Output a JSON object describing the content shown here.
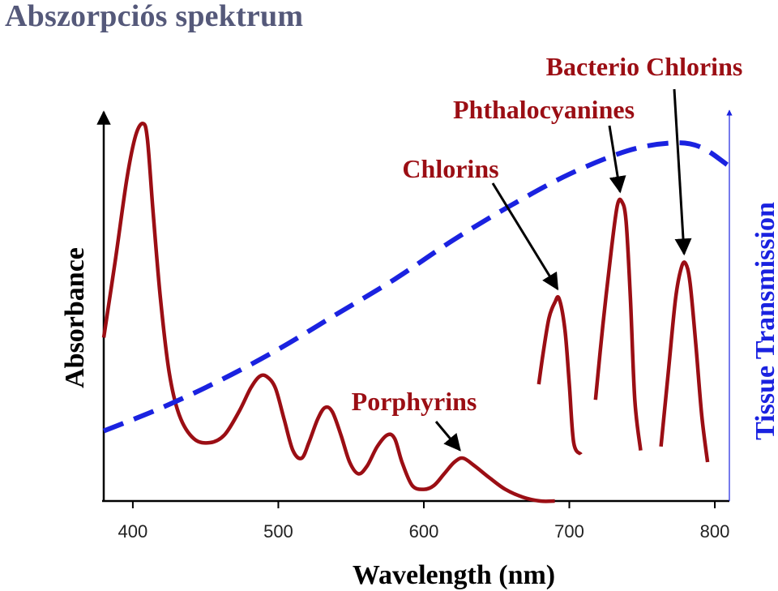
{
  "page": {
    "title": "Abszorpciós spektrum"
  },
  "colors": {
    "title": "#55597a",
    "spectrum": "#9b0e14",
    "transmission": "#1a22e0",
    "axis": "#000000",
    "annotation": "#9b0e14"
  },
  "chart_data": {
    "type": "line",
    "xlabel": "Wavelength (nm)",
    "ylabel": "Absorbance",
    "y2label": "Tissue Transmission",
    "xlim": [
      380,
      810
    ],
    "x_ticks": [
      "400",
      "500",
      "600",
      "700",
      "800"
    ],
    "series": [
      {
        "role": "spectrum",
        "points": [
          [
            380,
            0.42
          ],
          [
            388,
            0.62
          ],
          [
            396,
            0.83
          ],
          [
            402,
            0.94
          ],
          [
            407,
            0.97
          ],
          [
            410,
            0.93
          ],
          [
            414,
            0.74
          ],
          [
            419,
            0.52
          ],
          [
            425,
            0.33
          ],
          [
            432,
            0.22
          ],
          [
            442,
            0.16
          ],
          [
            453,
            0.15
          ],
          [
            463,
            0.17
          ],
          [
            473,
            0.23
          ],
          [
            481,
            0.29
          ],
          [
            487,
            0.32
          ],
          [
            492,
            0.32
          ],
          [
            498,
            0.29
          ],
          [
            504,
            0.21
          ],
          [
            510,
            0.13
          ],
          [
            516,
            0.11
          ],
          [
            521,
            0.15
          ],
          [
            527,
            0.21
          ],
          [
            532,
            0.24
          ],
          [
            537,
            0.23
          ],
          [
            543,
            0.17
          ],
          [
            549,
            0.1
          ],
          [
            555,
            0.07
          ],
          [
            561,
            0.09
          ],
          [
            568,
            0.14
          ],
          [
            575,
            0.17
          ],
          [
            580,
            0.16
          ],
          [
            585,
            0.1
          ],
          [
            592,
            0.04
          ],
          [
            600,
            0.03
          ],
          [
            607,
            0.04
          ],
          [
            614,
            0.07
          ],
          [
            621,
            0.1
          ],
          [
            627,
            0.11
          ],
          [
            635,
            0.09
          ],
          [
            645,
            0.06
          ],
          [
            656,
            0.03
          ],
          [
            668,
            0.01
          ],
          [
            680,
            0.0
          ],
          [
            690,
            0.0
          ]
        ]
      },
      {
        "role": "chlorins",
        "points": [
          [
            679,
            0.3
          ],
          [
            682,
            0.38
          ],
          [
            686,
            0.47
          ],
          [
            690,
            0.51
          ],
          [
            693,
            0.52
          ],
          [
            697,
            0.44
          ],
          [
            700,
            0.3
          ],
          [
            703,
            0.15
          ],
          [
            708,
            0.12
          ]
        ]
      },
      {
        "role": "phthalocyanines",
        "points": [
          [
            718,
            0.26
          ],
          [
            723,
            0.45
          ],
          [
            729,
            0.65
          ],
          [
            733,
            0.76
          ],
          [
            736,
            0.77
          ],
          [
            739,
            0.72
          ],
          [
            742,
            0.52
          ],
          [
            745,
            0.26
          ],
          [
            749,
            0.13
          ]
        ]
      },
      {
        "role": "bacterio-chlorins",
        "points": [
          [
            763,
            0.14
          ],
          [
            768,
            0.33
          ],
          [
            773,
            0.52
          ],
          [
            777,
            0.6
          ],
          [
            780,
            0.61
          ],
          [
            783,
            0.56
          ],
          [
            787,
            0.4
          ],
          [
            791,
            0.22
          ],
          [
            795,
            0.1
          ]
        ]
      },
      {
        "role": "tissue-transmission",
        "dashed": true,
        "points": [
          [
            380,
            0.18
          ],
          [
            420,
            0.24
          ],
          [
            460,
            0.31
          ],
          [
            500,
            0.39
          ],
          [
            540,
            0.48
          ],
          [
            580,
            0.57
          ],
          [
            620,
            0.67
          ],
          [
            660,
            0.76
          ],
          [
            700,
            0.84
          ],
          [
            740,
            0.9
          ],
          [
            770,
            0.92
          ],
          [
            790,
            0.91
          ],
          [
            810,
            0.86
          ]
        ]
      }
    ],
    "annotations": [
      {
        "id": "porphyrins",
        "text": "Porphyrins",
        "target": [
          627,
          0.11
        ]
      },
      {
        "id": "chlorins",
        "text": "Chlorins",
        "target": [
          693,
          0.52
        ]
      },
      {
        "id": "phthalocyanines",
        "text": "Phthalocyanines",
        "target": [
          736,
          0.77
        ]
      },
      {
        "id": "bacterio",
        "text": "Bacterio Chlorins",
        "target": [
          780,
          0.61
        ]
      }
    ]
  }
}
